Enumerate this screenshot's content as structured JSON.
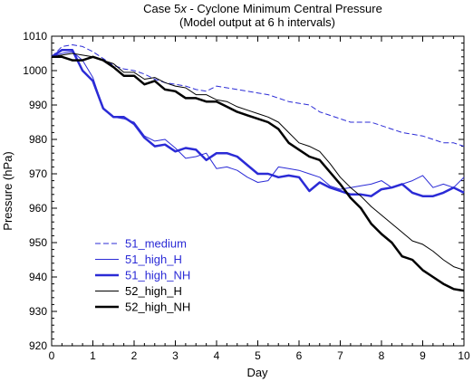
{
  "chart_data": {
    "type": "line",
    "title_parts": [
      "Case 5",
      "x",
      " - Cyclone Minimum Central Pressure"
    ],
    "subtitle": "(Model output at 6 h intervals)",
    "xlabel": "Day",
    "ylabel": "Pressure (hPa)",
    "xlim": [
      0,
      10
    ],
    "ylim": [
      920,
      1010
    ],
    "xticks": [
      "0",
      "1",
      "2",
      "3",
      "4",
      "5",
      "6",
      "7",
      "8",
      "9",
      "10"
    ],
    "yticks": [
      "920",
      "930",
      "940",
      "950",
      "960",
      "970",
      "980",
      "990",
      "1000",
      "1010"
    ],
    "grid": false,
    "legend_position": "lower-left",
    "series": [
      {
        "name": "51_medium",
        "color": "#2b2bd6",
        "style": "dashed",
        "width": 1,
        "x": [
          0,
          0.25,
          0.5,
          0.75,
          1,
          1.25,
          1.5,
          1.75,
          2,
          2.25,
          2.5,
          2.75,
          3,
          3.25,
          3.5,
          3.75,
          4,
          4.25,
          4.5,
          4.75,
          5,
          5.25,
          5.5,
          5.75,
          6,
          6.25,
          6.5,
          6.75,
          7,
          7.25,
          7.5,
          7.75,
          8,
          8.25,
          8.5,
          8.75,
          9,
          9.25,
          9.5,
          9.75,
          10
        ],
        "y": [
          1004,
          1007,
          1007.5,
          1007,
          1005.5,
          1003.5,
          1001.5,
          1000.5,
          1000,
          999,
          997.5,
          996.5,
          996,
          995.5,
          994.5,
          994,
          995.5,
          995,
          994.5,
          994,
          993.5,
          993,
          992,
          991,
          990.5,
          990,
          988,
          987,
          986,
          985,
          985,
          985,
          984,
          983,
          982,
          981.5,
          981,
          980,
          979,
          979,
          978
        ]
      },
      {
        "name": "51_high_H",
        "color": "#2b2bd6",
        "style": "solid",
        "width": 1,
        "x": [
          0,
          0.25,
          0.5,
          0.75,
          1,
          1.25,
          1.5,
          1.75,
          2,
          2.25,
          2.5,
          2.75,
          3,
          3.25,
          3.5,
          3.75,
          4,
          4.25,
          4.5,
          4.75,
          5,
          5.25,
          5.5,
          5.75,
          6,
          6.25,
          6.5,
          6.75,
          7,
          7.25,
          7.5,
          7.75,
          8,
          8.25,
          8.5,
          8.75,
          9,
          9.25,
          9.5,
          9.75,
          10
        ],
        "y": [
          1004,
          1005,
          1005.5,
          1003,
          998,
          989,
          986.5,
          986,
          985,
          981,
          979.5,
          980,
          977.5,
          974.5,
          975,
          976,
          971.5,
          972,
          971,
          969,
          967.5,
          968,
          972,
          971.5,
          971,
          970,
          969,
          966.5,
          965.5,
          966,
          966.5,
          967,
          968,
          966,
          967,
          968,
          969.5,
          966,
          967,
          966,
          969
        ]
      },
      {
        "name": "51_high_NH",
        "color": "#2b2bd6",
        "style": "solid",
        "width": 2.5,
        "x": [
          0,
          0.25,
          0.5,
          0.75,
          1,
          1.25,
          1.5,
          1.75,
          2,
          2.25,
          2.5,
          2.75,
          3,
          3.25,
          3.5,
          3.75,
          4,
          4.25,
          4.5,
          4.75,
          5,
          5.25,
          5.5,
          5.75,
          6,
          6.25,
          6.5,
          6.75,
          7,
          7.25,
          7.5,
          7.75,
          8,
          8.25,
          8.5,
          8.75,
          9,
          9.25,
          9.5,
          9.75,
          10
        ],
        "y": [
          1004,
          1006,
          1006,
          1000,
          997,
          989,
          986.5,
          986.5,
          984.5,
          980.5,
          978,
          978.5,
          976.5,
          977.5,
          977,
          974,
          976,
          976,
          975,
          972.5,
          970,
          970,
          969,
          969.5,
          969,
          965,
          967.5,
          966,
          965,
          964,
          964,
          963.5,
          965.5,
          966,
          967,
          964.5,
          963.5,
          963.5,
          964.5,
          966,
          964.5
        ]
      },
      {
        "name": "52_high_H",
        "color": "#000000",
        "style": "solid",
        "width": 1,
        "x": [
          0,
          0.25,
          0.5,
          0.75,
          1,
          1.25,
          1.5,
          1.75,
          2,
          2.25,
          2.5,
          2.75,
          3,
          3.25,
          3.5,
          3.75,
          4,
          4.25,
          4.5,
          4.75,
          5,
          5.25,
          5.5,
          5.75,
          6,
          6.25,
          6.5,
          6.75,
          7,
          7.25,
          7.5,
          7.75,
          8,
          8.25,
          8.5,
          8.75,
          9,
          9.25,
          9.5,
          9.75,
          10
        ],
        "y": [
          1004,
          1004.5,
          1005,
          1004.5,
          1004,
          1003,
          1002,
          999.5,
          999.5,
          997.5,
          998,
          996.5,
          995.5,
          995,
          993,
          993,
          991.5,
          991,
          989.5,
          988.5,
          987.5,
          986.5,
          985,
          982,
          979,
          978,
          976.5,
          973,
          969,
          966,
          963.5,
          960.5,
          958,
          955.5,
          953,
          950.5,
          949.5,
          947.5,
          945,
          943,
          942
        ]
      },
      {
        "name": "52_high_NH",
        "color": "#000000",
        "style": "solid",
        "width": 2.5,
        "x": [
          0,
          0.25,
          0.5,
          0.75,
          1,
          1.25,
          1.5,
          1.75,
          2,
          2.25,
          2.5,
          2.75,
          3,
          3.25,
          3.5,
          3.75,
          4,
          4.25,
          4.5,
          4.75,
          5,
          5.25,
          5.5,
          5.75,
          6,
          6.25,
          6.5,
          6.75,
          7,
          7.25,
          7.5,
          7.75,
          8,
          8.25,
          8.5,
          8.75,
          9,
          9.25,
          9.5,
          9.75,
          10
        ],
        "y": [
          1004,
          1004,
          1003,
          1003,
          1004,
          1003,
          1001,
          998.5,
          998.5,
          996,
          997,
          994.5,
          994,
          992,
          992,
          991,
          991,
          989.5,
          988,
          987,
          986,
          985,
          983,
          979,
          977,
          975,
          974,
          970.5,
          967,
          963,
          960,
          955.5,
          952.5,
          950,
          946,
          945,
          942,
          940,
          938,
          936.5,
          936
        ]
      }
    ]
  }
}
